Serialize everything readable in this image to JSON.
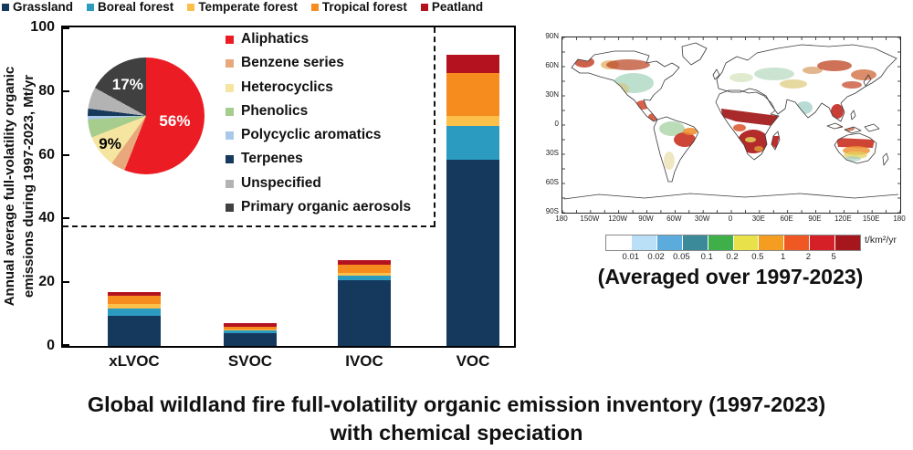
{
  "chart_data": [
    {
      "type": "bar",
      "stacked": true,
      "categories": [
        "xLVOC",
        "SVOC",
        "IVOC",
        "VOC"
      ],
      "series": [
        {
          "name": "Grassland",
          "color": "#14395d",
          "values": [
            9.5,
            4.0,
            20.5,
            58.5
          ]
        },
        {
          "name": "Boreal forest",
          "color": "#2b9bc0",
          "values": [
            2.3,
            0.8,
            1.7,
            10.5
          ]
        },
        {
          "name": "Temperate forest",
          "color": "#fbbf4a",
          "values": [
            1.5,
            0.5,
            0.7,
            3.3
          ]
        },
        {
          "name": "Tropical forest",
          "color": "#f68b1e",
          "values": [
            2.5,
            0.7,
            2.7,
            13.5
          ]
        },
        {
          "name": "Peatland",
          "color": "#b51220",
          "values": [
            1.2,
            1.2,
            1.4,
            5.5
          ]
        }
      ],
      "ylabel_lines": [
        "Annual average full-volatility organic",
        "emissions during 1997-2023, Mt/yr"
      ],
      "ylim": [
        0,
        100
      ],
      "yticks": [
        0,
        20,
        40,
        60,
        80,
        100
      ],
      "legend_position": "top",
      "grid": false
    },
    {
      "type": "pie",
      "labels": [
        "Aliphatics",
        "Benzene series",
        "Heterocyclics",
        "Phenolics",
        "Polycyclic aromatics",
        "Terpenes",
        "Unspecified",
        "Primary organic aerosols"
      ],
      "values": [
        56,
        4,
        9,
        5,
        1,
        2,
        6,
        17
      ],
      "colors": [
        "#ec1c24",
        "#e9a87c",
        "#f5e5a0",
        "#a6cc8e",
        "#aac9e8",
        "#17395c",
        "#b3b3b3",
        "#404040"
      ],
      "annotations": [
        {
          "text": "56%",
          "slice": 0,
          "color": "#ffffff",
          "r": 0.5
        },
        {
          "text": "9%",
          "slice": 2,
          "color": "#000000",
          "r": 0.78
        },
        {
          "text": "17%",
          "slice": 7,
          "color": "#ffffff",
          "r": 0.62
        }
      ],
      "legend_position": "right"
    },
    {
      "type": "heatmap",
      "caption": "(Averaged over 1997-2023)",
      "unit": "t/km²/yr",
      "colorbar_colors": [
        "#ffffff",
        "#b9e0f7",
        "#5babdd",
        "#3a8a99",
        "#3faf4a",
        "#e8e14a",
        "#f59d20",
        "#ef5823",
        "#d62027",
        "#a5161d"
      ],
      "colorbar_ticks": [
        "0.01",
        "0.02",
        "0.05",
        "0.1",
        "0.2",
        "0.5",
        "1",
        "2",
        "5"
      ],
      "lat_ticks": [
        "90N",
        "60N",
        "30N",
        "0",
        "30S",
        "60S",
        "90S"
      ],
      "lon_ticks": [
        "180",
        "150W",
        "120W",
        "90W",
        "60W",
        "30W",
        "0",
        "30E",
        "60E",
        "90E",
        "120E",
        "150E",
        "180"
      ]
    }
  ],
  "footer": {
    "line1": "Global wildland fire full-volatility organic emission inventory (1997-2023)",
    "line2": "with chemical speciation"
  }
}
